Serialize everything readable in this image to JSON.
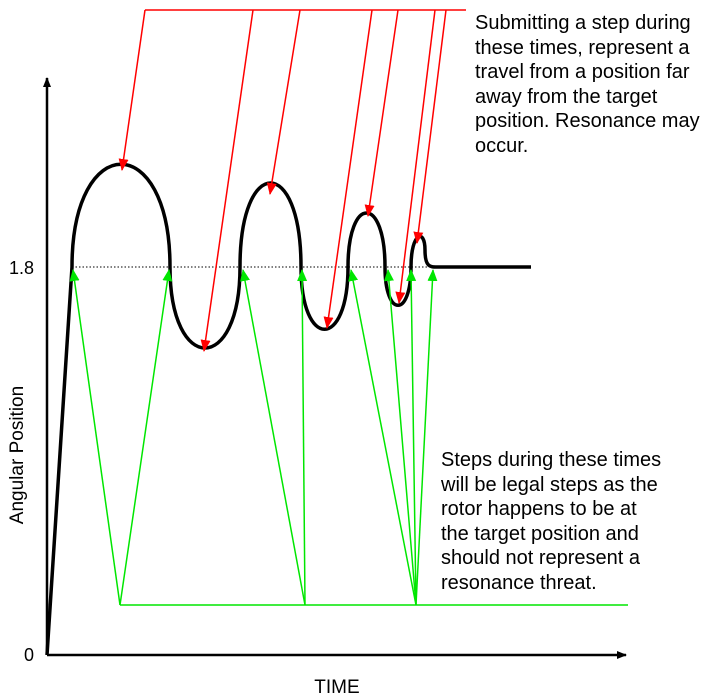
{
  "axes": {
    "y_label": "Angular Position",
    "x_label": "TIME",
    "y_tick_target": "1.8",
    "y_tick_zero": "0"
  },
  "annotations": {
    "resonance_note": "Submitting a step during\nthese times, represent a\ntravel from a position far\naway from the target\nposition. Resonance may\noccur.",
    "legal_note": "Steps during these times\nwill be legal steps as the\nrotor happens to be at\nthe target position and\nshould not represent a\nresonance threat."
  },
  "colors": {
    "curve": "#000000",
    "resonance_arrows": "#ff0000",
    "legal_arrows": "#00e600",
    "target_line": "#000000"
  }
}
